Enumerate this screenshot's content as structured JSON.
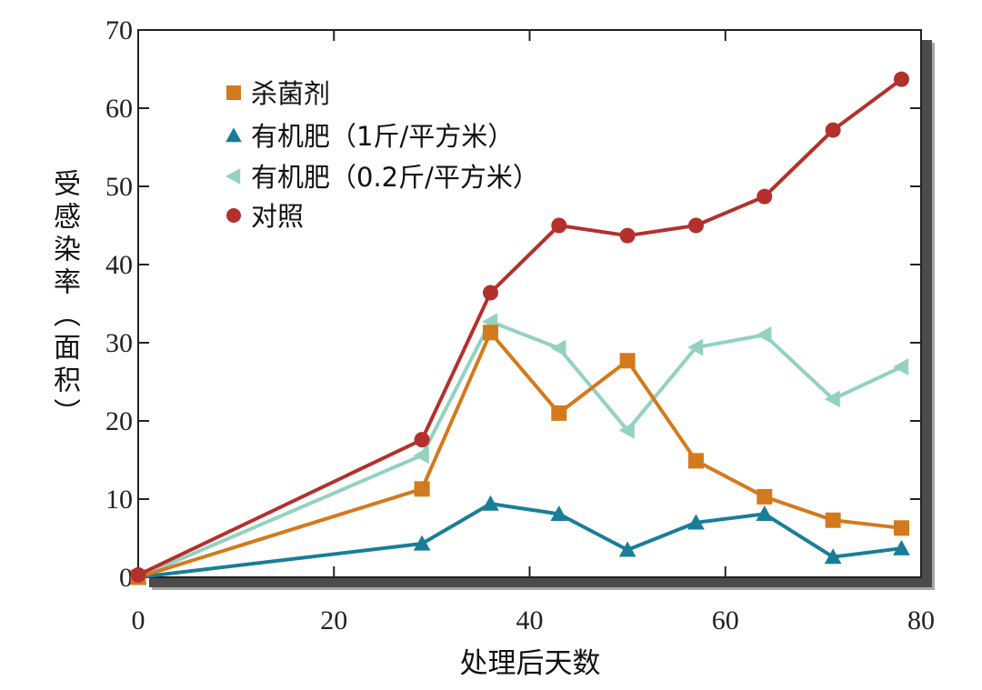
{
  "chart_data": {
    "type": "line",
    "title": "",
    "xlabel": "处理后天数",
    "ylabel": "受感染率（面积）",
    "xlim": [
      0,
      80
    ],
    "ylim": [
      0,
      70
    ],
    "x_ticks": [
      0,
      20,
      40,
      60,
      80
    ],
    "y_ticks": [
      0,
      10,
      20,
      30,
      40,
      50,
      60,
      70
    ],
    "grid": false,
    "legend_position": "top-left",
    "x": [
      0,
      29,
      36,
      43,
      50,
      57,
      64,
      71,
      78
    ],
    "series": [
      {
        "name": "杀菌剂",
        "marker": "square",
        "color": "#d4791c",
        "values": [
          0,
          11.3,
          31.3,
          21.0,
          27.7,
          14.9,
          10.3,
          7.3,
          6.3
        ]
      },
      {
        "name": "有机肥（1斤/平方米）",
        "marker": "triangle-up",
        "color": "#1a7d98",
        "values": [
          0,
          4.3,
          9.4,
          8.1,
          3.5,
          7.0,
          8.1,
          2.6,
          3.7
        ]
      },
      {
        "name": "有机肥（0.2斤/平方米）",
        "marker": "triangle-left",
        "color": "#93d1c0",
        "values": [
          0,
          15.6,
          32.7,
          29.3,
          18.8,
          29.4,
          31.0,
          22.8,
          26.9
        ]
      },
      {
        "name": "对照",
        "marker": "circle",
        "color": "#b3302c",
        "values": [
          0.3,
          17.6,
          36.4,
          45.0,
          43.7,
          45.0,
          48.7,
          57.2,
          63.7
        ]
      }
    ]
  }
}
